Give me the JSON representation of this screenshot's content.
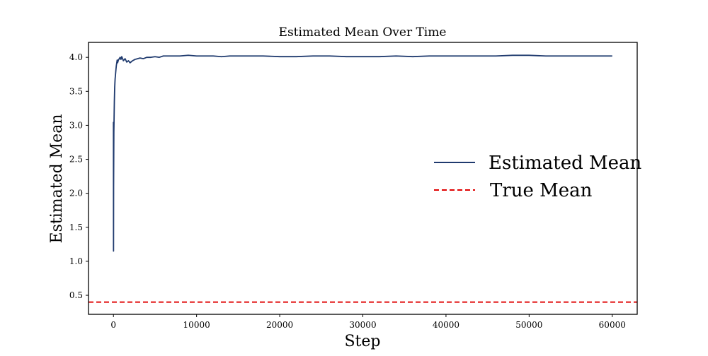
{
  "chart_data": {
    "type": "line",
    "title": "Estimated Mean Over Time",
    "xlabel": "Step",
    "ylabel": "Estimated Mean",
    "xlim": [
      -3000,
      63000
    ],
    "ylim": [
      0.22,
      4.22
    ],
    "xticks": [
      0,
      10000,
      20000,
      30000,
      40000,
      50000,
      60000
    ],
    "yticks": [
      0.5,
      1.0,
      1.5,
      2.0,
      2.5,
      3.0,
      3.5,
      4.0
    ],
    "grid": false,
    "legend_position": "center-right",
    "series": [
      {
        "name": "Estimated Mean",
        "color": "#1f3a6e",
        "style": "solid",
        "x": [
          0,
          10,
          20,
          35,
          50,
          70,
          90,
          110,
          130,
          150,
          175,
          200,
          250,
          300,
          350,
          400,
          450,
          500,
          600,
          700,
          800,
          900,
          1000,
          1200,
          1400,
          1600,
          1800,
          2000,
          2300,
          2600,
          2900,
          3200,
          3600,
          4000,
          4500,
          5000,
          5500,
          6000,
          7000,
          8000,
          9000,
          10000,
          11000,
          12000,
          13000,
          14000,
          15000,
          16000,
          17000,
          18000,
          20000,
          22000,
          24000,
          26000,
          28000,
          30000,
          32000,
          34000,
          36000,
          38000,
          40000,
          42000,
          44000,
          46000,
          48000,
          50000,
          52000,
          54000,
          56000,
          58000,
          60000
        ],
        "y": [
          3.05,
          1.15,
          2.1,
          2.5,
          2.9,
          3.05,
          3.2,
          3.35,
          3.45,
          3.55,
          3.62,
          3.68,
          3.75,
          3.82,
          3.88,
          3.92,
          3.96,
          3.92,
          3.96,
          3.98,
          4.0,
          3.97,
          4.01,
          3.95,
          3.98,
          3.93,
          3.95,
          3.92,
          3.95,
          3.97,
          3.98,
          3.99,
          3.98,
          4.0,
          4.0,
          4.01,
          4.0,
          4.02,
          4.02,
          4.02,
          4.03,
          4.02,
          4.02,
          4.02,
          4.01,
          4.02,
          4.02,
          4.02,
          4.02,
          4.02,
          4.01,
          4.01,
          4.02,
          4.02,
          4.01,
          4.01,
          4.01,
          4.02,
          4.01,
          4.02,
          4.02,
          4.02,
          4.02,
          4.02,
          4.03,
          4.03,
          4.02,
          4.02,
          4.02,
          4.02,
          4.02
        ]
      },
      {
        "name": "True Mean",
        "color": "#e00000",
        "style": "dashed",
        "y_constant": 0.4
      }
    ]
  }
}
